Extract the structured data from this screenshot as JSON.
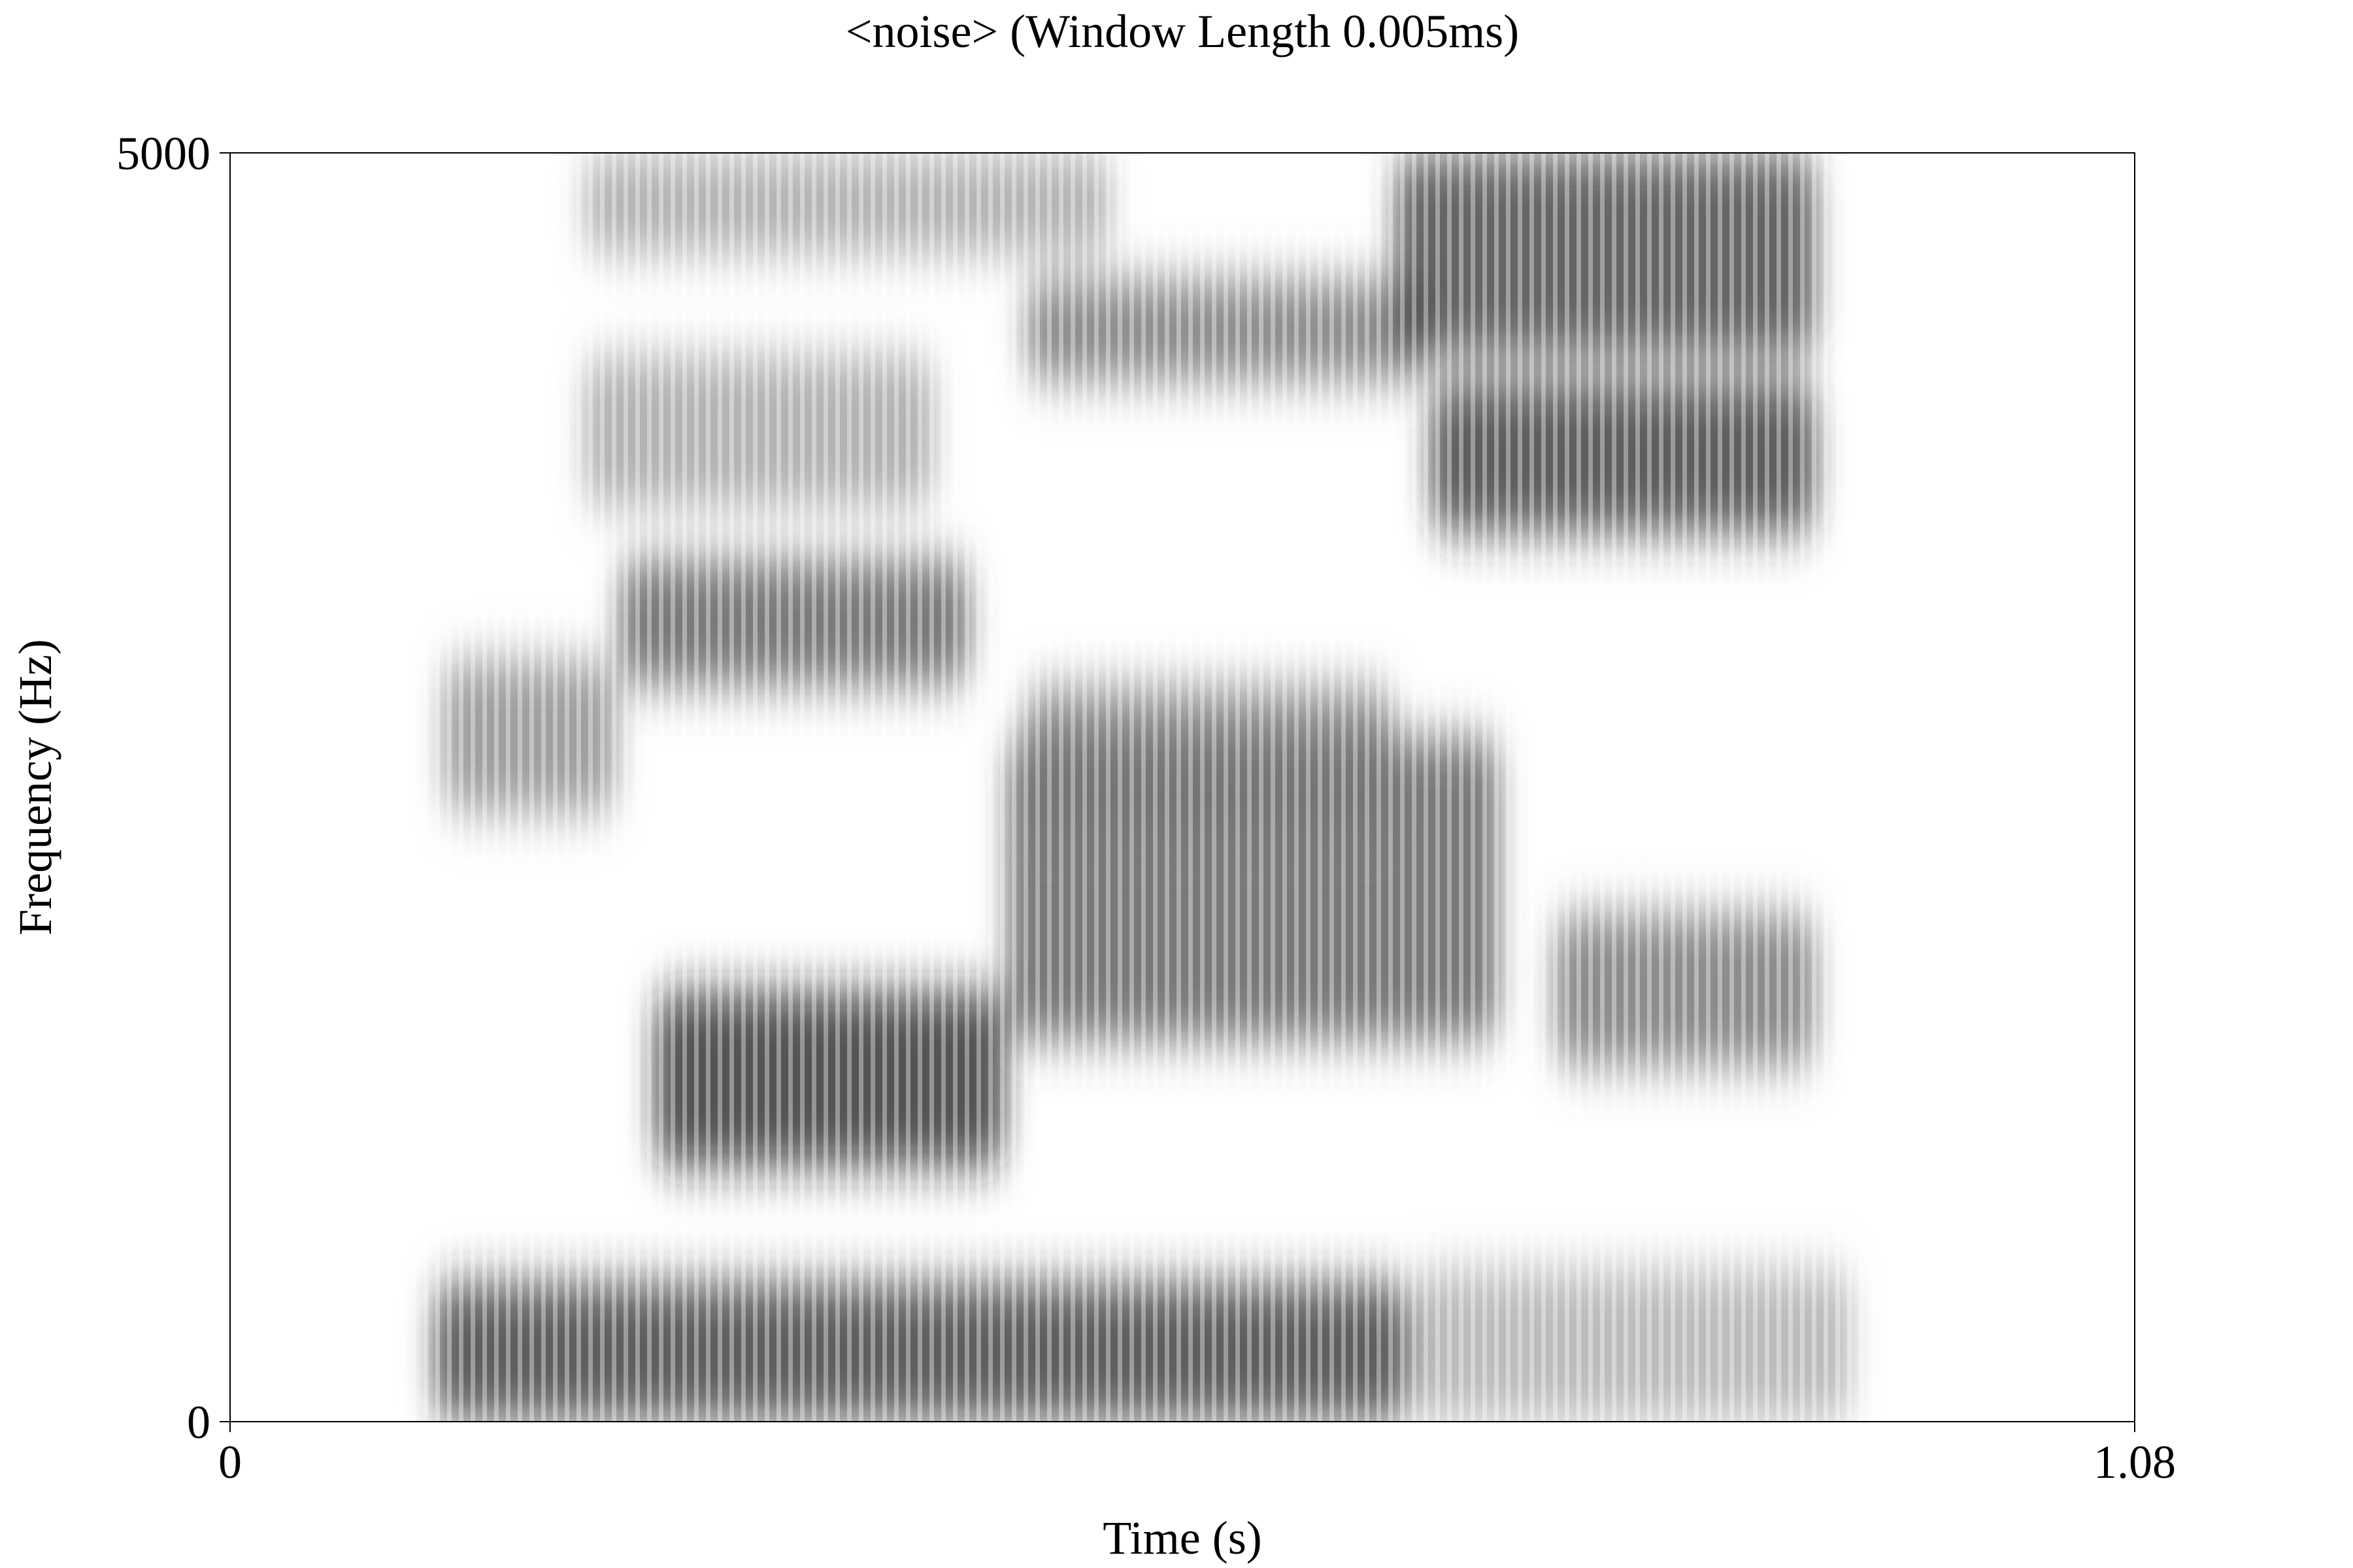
{
  "chart_data": {
    "type": "heatmap",
    "title": "<noise> (Window Length 0.005ms)",
    "xlabel": "Time (s)",
    "ylabel": "Frequency (Hz)",
    "xlim": [
      0,
      1.08
    ],
    "ylim": [
      0,
      5000
    ],
    "x_ticks": [
      {
        "value": 0,
        "label": "0"
      },
      {
        "value": 1.08,
        "label": "1.08"
      }
    ],
    "y_ticks": [
      {
        "value": 0,
        "label": "0"
      },
      {
        "value": 5000,
        "label": "5000"
      }
    ],
    "grid": false,
    "colormap": "grayscale (white = low energy, black = high energy)",
    "energy_regions": [
      {
        "t": [
          0.115,
          0.67
        ],
        "f": [
          0,
          550
        ],
        "intensity": 0.85
      },
      {
        "t": [
          0.67,
          0.92
        ],
        "f": [
          0,
          600
        ],
        "intensity": 0.35
      },
      {
        "t": [
          0.24,
          0.44
        ],
        "f": [
          1000,
          1700
        ],
        "intensity": 0.9
      },
      {
        "t": [
          0.44,
          0.72
        ],
        "f": [
          1500,
          2700
        ],
        "intensity": 0.7
      },
      {
        "t": [
          0.75,
          0.9
        ],
        "f": [
          1400,
          2000
        ],
        "intensity": 0.6
      },
      {
        "t": [
          0.12,
          0.22
        ],
        "f": [
          2400,
          3000
        ],
        "intensity": 0.5
      },
      {
        "t": [
          0.22,
          0.42
        ],
        "f": [
          2900,
          3400
        ],
        "intensity": 0.7
      },
      {
        "t": [
          0.45,
          0.66
        ],
        "f": [
          2300,
          2900
        ],
        "intensity": 0.55
      },
      {
        "t": [
          0.45,
          0.68
        ],
        "f": [
          4100,
          4500
        ],
        "intensity": 0.6
      },
      {
        "t": [
          0.68,
          0.9
        ],
        "f": [
          3500,
          4100
        ],
        "intensity": 0.85
      },
      {
        "t": [
          0.66,
          0.9
        ],
        "f": [
          4200,
          5000
        ],
        "intensity": 0.8
      },
      {
        "t": [
          0.2,
          0.4
        ],
        "f": [
          3600,
          4200
        ],
        "intensity": 0.4
      },
      {
        "t": [
          0.2,
          0.5
        ],
        "f": [
          4600,
          5000
        ],
        "intensity": 0.4
      }
    ]
  }
}
